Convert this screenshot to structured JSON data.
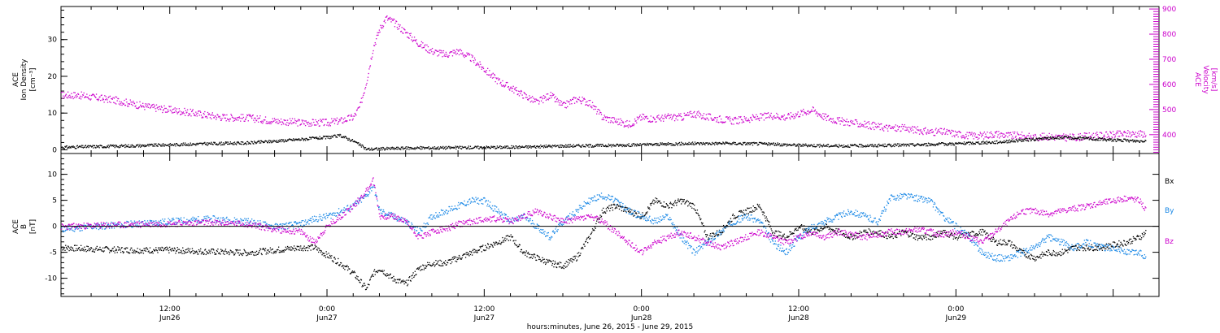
{
  "colors": {
    "black": "#000000",
    "magenta": "#cc00cc",
    "blue": "#1a88e6"
  },
  "chart_data": [
    {
      "type": "scatter",
      "panel": "top",
      "ylabel": [
        "ACE",
        "Ion Density",
        "[cm⁻³]"
      ],
      "ylim": [
        -1,
        39
      ],
      "yticks": [
        0,
        10,
        20,
        30
      ],
      "y2label": [
        "ACE",
        "Velocity",
        "[km/s]"
      ],
      "y2lim": [
        325,
        910
      ],
      "y2ticks": [
        400,
        500,
        600,
        700,
        800,
        900
      ],
      "x_range_hours": [
        3.7,
        87.5
      ],
      "grid": false,
      "series": [
        {
          "axis": "left",
          "color": "magenta",
          "x": [
            3.7,
            5,
            8,
            10,
            12,
            14,
            16,
            18,
            20,
            22,
            24,
            25,
            26,
            26.5,
            27,
            27.5,
            28,
            28.5,
            29,
            30,
            31,
            32,
            33,
            34,
            35,
            36,
            37,
            38,
            39,
            40,
            41,
            42,
            43,
            44,
            45,
            46,
            47,
            48,
            49,
            50,
            51,
            52,
            53,
            54,
            55,
            56,
            57,
            58,
            59,
            60,
            61,
            62,
            63,
            64,
            65,
            66,
            67,
            68,
            69,
            70,
            71,
            72,
            73,
            74,
            75,
            76,
            77,
            78,
            79,
            80,
            81,
            82,
            83,
            84,
            85,
            86,
            86.5
          ],
          "y": [
            15,
            15,
            13.5,
            12,
            11,
            10,
            9,
            8.8,
            8,
            7.5,
            7.5,
            8,
            9,
            12,
            19,
            28,
            33,
            36,
            35,
            32,
            29,
            27,
            26,
            27,
            25,
            22,
            19,
            17,
            15,
            13,
            15,
            12,
            14,
            13,
            9,
            8,
            7,
            9,
            8.5,
            9,
            9,
            10,
            9,
            8.5,
            8,
            8.5,
            9,
            9.5,
            9,
            10,
            11,
            9,
            8,
            7.5,
            7,
            6.5,
            6,
            6,
            5.5,
            5,
            5,
            4.5,
            4,
            4,
            4.5,
            4,
            4,
            3.5,
            3.8,
            3.5,
            3.5,
            3.8,
            4,
            4.2,
            4.5,
            4.5,
            4.5
          ]
        },
        {
          "axis": "left",
          "color": "black",
          "x": [
            3.7,
            6,
            9,
            12,
            15,
            18,
            20,
            22,
            24,
            25,
            26,
            27,
            28,
            30,
            33,
            36,
            39,
            42,
            45,
            48,
            51,
            54,
            57,
            60,
            63,
            66,
            69,
            72,
            75,
            78,
            80,
            82,
            84,
            86,
            86.5
          ],
          "y": [
            0.8,
            1,
            1.2,
            1.5,
            1.8,
            2,
            2.5,
            3,
            3.5,
            4,
            2.5,
            0.3,
            0.4,
            0.6,
            0.7,
            0.8,
            0.9,
            1.2,
            1.3,
            1.5,
            1.8,
            1.9,
            1.8,
            1.4,
            1.2,
            1.3,
            1.5,
            1.8,
            2.2,
            3,
            3.5,
            3.2,
            2.8,
            2.5,
            2.7
          ]
        }
      ]
    },
    {
      "type": "scatter",
      "panel": "bottom",
      "ylabel": [
        "ACE",
        "B",
        "[nT]"
      ],
      "ylim": [
        -13.5,
        14
      ],
      "yticks": [
        -10,
        -5,
        0,
        5,
        10
      ],
      "zero_line": true,
      "x_range_hours": [
        3.7,
        87.5
      ],
      "legend": [
        "Bx",
        "By",
        "Bz"
      ],
      "legend_position": "right",
      "grid": false,
      "series": [
        {
          "name": "Bx",
          "color": "black",
          "x": [
            3.7,
            6,
            9,
            12,
            15,
            18,
            20,
            22,
            23,
            24,
            25,
            26,
            27,
            27.5,
            28,
            29,
            30,
            31,
            32,
            33,
            34,
            35,
            36,
            37,
            38,
            39,
            40,
            41,
            42,
            43,
            44,
            45,
            46,
            47,
            48,
            49,
            50,
            51,
            52,
            53,
            54,
            55,
            56,
            57,
            58,
            59,
            60,
            61,
            62,
            63,
            64,
            65,
            66,
            67,
            68,
            69,
            70,
            71,
            72,
            73,
            74,
            75,
            76,
            77,
            78,
            79,
            80,
            81,
            82,
            83,
            84,
            85,
            86,
            86.5
          ],
          "y": [
            -4,
            -4.3,
            -4.5,
            -4.5,
            -4.8,
            -5,
            -4.5,
            -4,
            -4,
            -5.5,
            -7,
            -9,
            -12,
            -9,
            -8,
            -10,
            -11,
            -8,
            -7,
            -7,
            -6,
            -5,
            -4,
            -3,
            -2,
            -5,
            -6,
            -7,
            -7.5,
            -6,
            -2,
            3,
            4,
            3,
            2,
            5,
            4,
            5,
            4,
            -2,
            -1,
            2,
            3,
            4,
            -1,
            -2,
            0,
            -1,
            0,
            -1,
            -2,
            -1,
            -1,
            -2,
            -1,
            -2,
            -2,
            -1,
            -2,
            -1.5,
            -1,
            -3,
            -3,
            -5,
            -6,
            -5,
            -5,
            -4,
            -4,
            -4,
            -3.5,
            -3,
            -2,
            -1
          ]
        },
        {
          "name": "By",
          "color": "blue",
          "x": [
            3.7,
            6,
            9,
            12,
            15,
            18,
            20,
            22,
            23,
            24,
            25,
            26,
            27,
            27.5,
            28,
            29,
            30,
            31,
            32,
            33,
            34,
            35,
            36,
            37,
            38,
            39,
            40,
            41,
            42,
            43,
            44,
            45,
            46,
            47,
            48,
            49,
            50,
            51,
            52,
            53,
            54,
            55,
            56,
            57,
            58,
            59,
            60,
            61,
            62,
            63,
            64,
            65,
            66,
            67,
            68,
            69,
            70,
            71,
            72,
            73,
            74,
            75,
            76,
            77,
            78,
            79,
            80,
            81,
            82,
            83,
            84,
            85,
            86,
            86.5
          ],
          "y": [
            -0.5,
            0,
            0.5,
            1,
            1.5,
            1,
            0,
            0.5,
            1.5,
            2,
            3,
            4,
            6,
            8,
            3,
            2,
            1,
            -1,
            2,
            3,
            4,
            5,
            5,
            3,
            1,
            2,
            0,
            -2,
            1,
            3,
            5,
            6,
            5,
            3,
            2,
            1,
            2,
            -2,
            -5,
            -3,
            -1,
            1,
            2,
            1,
            -3,
            -5,
            -2,
            0,
            1,
            2,
            3,
            2,
            1,
            5.5,
            6,
            5.5,
            5,
            2,
            0,
            -2,
            -5,
            -6,
            -6,
            -5,
            -4,
            -2,
            -3,
            -4,
            -3,
            -4,
            -4,
            -5,
            -5,
            -6
          ]
        },
        {
          "name": "Bz",
          "color": "magenta",
          "x": [
            3.7,
            6,
            9,
            12,
            15,
            18,
            20,
            22,
            23,
            24,
            25,
            26,
            27,
            27.5,
            28,
            29,
            30,
            31,
            32,
            33,
            34,
            35,
            36,
            37,
            38,
            39,
            40,
            41,
            42,
            43,
            44,
            45,
            46,
            47,
            48,
            49,
            50,
            51,
            52,
            53,
            54,
            55,
            56,
            57,
            58,
            59,
            60,
            61,
            62,
            63,
            64,
            65,
            66,
            67,
            68,
            69,
            70,
            71,
            72,
            73,
            74,
            75,
            76,
            77,
            78,
            79,
            80,
            81,
            82,
            83,
            84,
            85,
            86,
            86.5
          ],
          "y": [
            0,
            0.2,
            0.4,
            0.6,
            0.8,
            0.5,
            -0.5,
            -1,
            -3,
            0,
            2,
            4,
            7,
            9,
            2,
            2,
            1,
            -2,
            -1,
            -0.5,
            0.5,
            1,
            1.5,
            1.5,
            1,
            2,
            3,
            2,
            1,
            1.5,
            2,
            1,
            -1,
            -3,
            -5,
            -3,
            -2,
            -1,
            -2,
            -3,
            -4,
            -3,
            -2,
            -1,
            -2,
            -3,
            -2,
            -1,
            -2,
            -1,
            -1.5,
            -2,
            -1.5,
            -1,
            -1,
            -0.5,
            -1,
            -1.5,
            -1,
            -2,
            -3,
            -1,
            1,
            3,
            3,
            2.5,
            3,
            3.5,
            4,
            4.5,
            5,
            5.5,
            5,
            3
          ]
        }
      ]
    }
  ],
  "xaxis": {
    "ticks": [
      {
        "h": 12,
        "time": "12:00",
        "date": "Jun26"
      },
      {
        "h": 24,
        "time": "0:00",
        "date": "Jun27"
      },
      {
        "h": 36,
        "time": "12:00",
        "date": "Jun27"
      },
      {
        "h": 48,
        "time": "0:00",
        "date": "Jun28"
      },
      {
        "h": 60,
        "time": "12:00",
        "date": "Jun28"
      },
      {
        "h": 72,
        "time": "0:00",
        "date": "Jun29"
      }
    ],
    "title": "hours:minutes, June 26, 2015 - June 29, 2015"
  }
}
